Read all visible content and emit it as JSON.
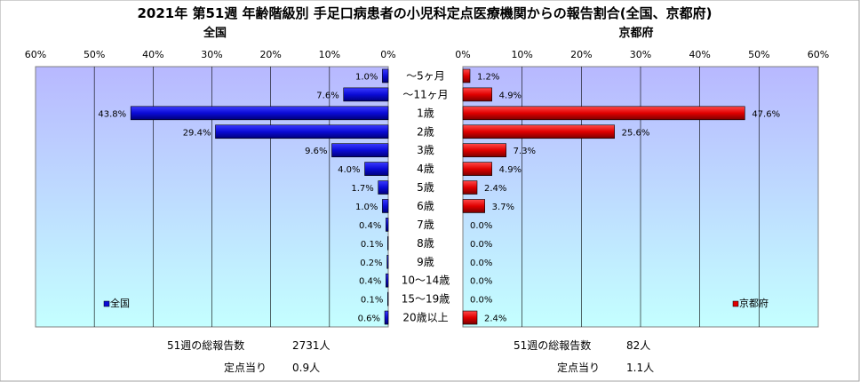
{
  "title": "2021年 第51週 年齢階級別 手足口病患者の小児科定点医療機関からの報告割合(全国、京都府)",
  "age_groups": [
    "～5ヶ月",
    "～11ヶ月",
    "1歳",
    "2歳",
    "3歳",
    "4歳",
    "5歳",
    "6歳",
    "7歳",
    "8歳",
    "9歳",
    "10～14歳",
    "15～19歳",
    "20歳以上"
  ],
  "chart_data": [
    {
      "type": "bar",
      "orientation": "horizontal",
      "direction": "leftward",
      "title": "全国",
      "categories": [
        "～5ヶ月",
        "～11ヶ月",
        "1歳",
        "2歳",
        "3歳",
        "4歳",
        "5歳",
        "6歳",
        "7歳",
        "8歳",
        "9歳",
        "10～14歳",
        "15～19歳",
        "20歳以上"
      ],
      "series": [
        {
          "name": "全国",
          "values": [
            1.0,
            7.6,
            43.8,
            29.4,
            9.6,
            4.0,
            1.7,
            1.0,
            0.4,
            0.1,
            0.2,
            0.4,
            0.1,
            0.6
          ]
        }
      ],
      "value_labels": [
        "1.0%",
        "7.6%",
        "43.8%",
        "29.4%",
        "9.6%",
        "4.0%",
        "1.7%",
        "1.0%",
        "0.4%",
        "0.1%",
        "0.2%",
        "0.4%",
        "0.1%",
        "0.6%"
      ],
      "xlim": [
        0,
        60
      ],
      "ticks": [
        "60%",
        "50%",
        "40%",
        "30%",
        "20%",
        "10%",
        "0%"
      ],
      "grid": true,
      "legend_position": "bottom-left",
      "color": "#0b0bd6"
    },
    {
      "type": "bar",
      "orientation": "horizontal",
      "direction": "rightward",
      "title": "京都府",
      "categories": [
        "～5ヶ月",
        "～11ヶ月",
        "1歳",
        "2歳",
        "3歳",
        "4歳",
        "5歳",
        "6歳",
        "7歳",
        "8歳",
        "9歳",
        "10～14歳",
        "15～19歳",
        "20歳以上"
      ],
      "series": [
        {
          "name": "京都府",
          "values": [
            1.2,
            4.9,
            47.6,
            25.6,
            7.3,
            4.9,
            2.4,
            3.7,
            0.0,
            0.0,
            0.0,
            0.0,
            0.0,
            2.4
          ]
        }
      ],
      "value_labels": [
        "1.2%",
        "4.9%",
        "47.6%",
        "25.6%",
        "7.3%",
        "4.9%",
        "2.4%",
        "3.7%",
        "0.0%",
        "0.0%",
        "0.0%",
        "0.0%",
        "0.0%",
        "2.4%"
      ],
      "xlim": [
        0,
        60
      ],
      "ticks": [
        "0%",
        "10%",
        "20%",
        "30%",
        "40%",
        "50%",
        "60%"
      ],
      "grid": true,
      "legend_position": "bottom-right",
      "color": "#e00000"
    }
  ],
  "summary": {
    "national": {
      "total_label": "51週の総報告数",
      "total_value": "2731人",
      "per_label": "定点当り",
      "per_value": "0.9人"
    },
    "kyoto": {
      "total_label": "51週の総報告数",
      "total_value": "82人",
      "per_label": "定点当り",
      "per_value": "1.1人"
    }
  },
  "colors": {
    "plot_top": "#b8b8ff",
    "plot_bottom": "#c4ffff",
    "grid": "#000000"
  }
}
